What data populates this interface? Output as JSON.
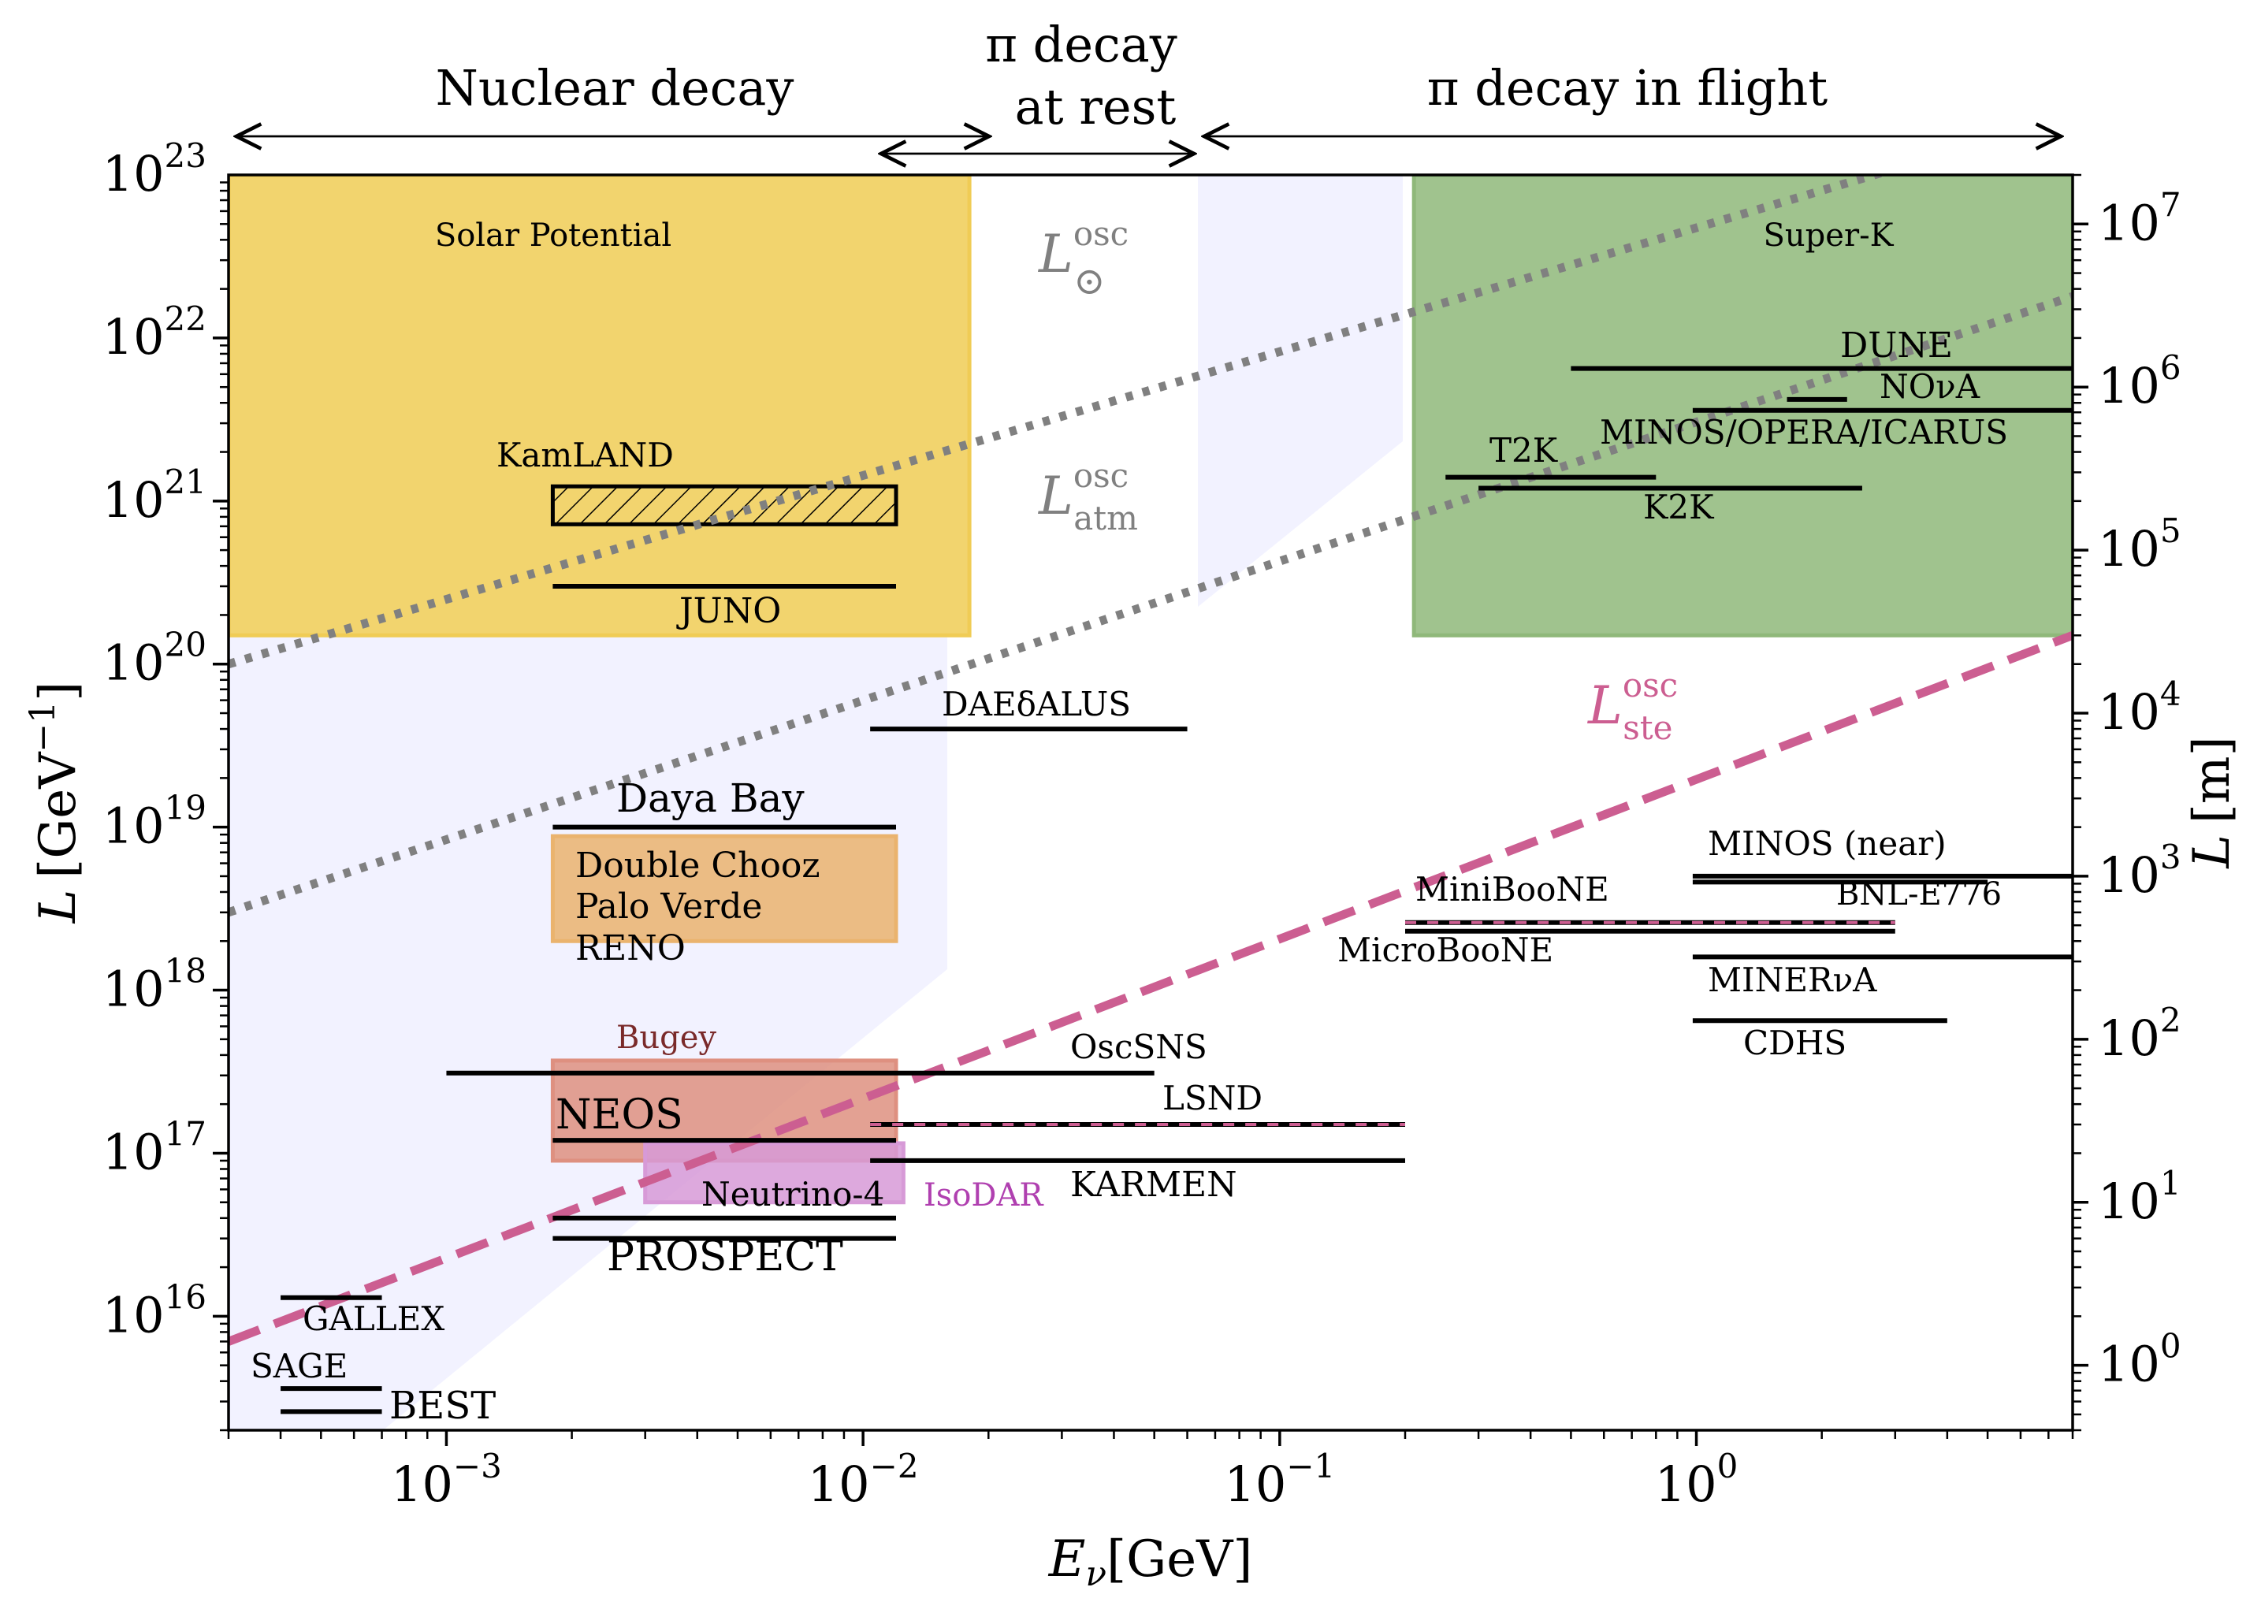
{
  "chart_data": {
    "type": "scatter",
    "title": "",
    "xlabel": {
      "var": "E",
      "sub": "ν",
      "unit": "[GeV]"
    },
    "ylabel": {
      "var": "L",
      "unit": "[GeV",
      "exp": "−1",
      "close": "]"
    },
    "y2label": {
      "var": "L",
      "unit": "[m]"
    },
    "xscale": "log",
    "yscale": "log",
    "xlim": [
      0.0003,
      8.0
    ],
    "ylim": [
      2000000000000000.0,
      1e+23
    ],
    "y2lim_m": [
      0.4,
      20000000.0
    ],
    "xticks": [
      {
        "value": 0.001,
        "base": "10",
        "exp": "−3"
      },
      {
        "value": 0.01,
        "base": "10",
        "exp": "−2"
      },
      {
        "value": 0.1,
        "base": "10",
        "exp": "−1"
      },
      {
        "value": 1.0,
        "base": "10",
        "exp": "0"
      }
    ],
    "yticks": [
      {
        "value": 1e+16,
        "base": "10",
        "exp": "16"
      },
      {
        "value": 1e+17,
        "base": "10",
        "exp": "17"
      },
      {
        "value": 1e+18,
        "base": "10",
        "exp": "18"
      },
      {
        "value": 1e+19,
        "base": "10",
        "exp": "19"
      },
      {
        "value": 1e+20,
        "base": "10",
        "exp": "20"
      },
      {
        "value": 1e+21,
        "base": "10",
        "exp": "21"
      },
      {
        "value": 1e+22,
        "base": "10",
        "exp": "22"
      },
      {
        "value": 1e+23,
        "base": "10",
        "exp": "23"
      }
    ],
    "y2ticks": [
      {
        "value": 1,
        "base": "10",
        "exp": "0"
      },
      {
        "value": 10,
        "base": "10",
        "exp": "1"
      },
      {
        "value": 100,
        "base": "10",
        "exp": "2"
      },
      {
        "value": 1000,
        "base": "10",
        "exp": "3"
      },
      {
        "value": 10000.0,
        "base": "10",
        "exp": "4"
      },
      {
        "value": 100000.0,
        "base": "10",
        "exp": "5"
      },
      {
        "value": 1000000.0,
        "base": "10",
        "exp": "6"
      },
      {
        "value": 10000000.0,
        "base": "10",
        "exp": "7"
      }
    ],
    "regions": [
      {
        "name": "Nuclear decay",
        "x_from": 0.0003,
        "x_to": 0.018
      },
      {
        "name_line1": "π decay",
        "name_line2": "at rest",
        "x_from": 0.0106,
        "x_to": 0.06
      },
      {
        "name": "π decay in flight",
        "x_from": 0.065,
        "x_to": 8.0
      }
    ],
    "osc_lines": [
      {
        "name": "L_sun",
        "label_var": "L",
        "label_sup": "osc",
        "label_sub": "⊙",
        "color": "#808080",
        "style": "dotted",
        "x": [
          0.0003,
          8.0
        ],
        "y": [
          1e+20,
          2.3e+23
        ]
      },
      {
        "name": "L_atm",
        "label_var": "L",
        "label_sup": "osc",
        "label_sub": "atm",
        "color": "#808080",
        "style": "dotted",
        "x": [
          0.0003,
          8.0
        ],
        "y": [
          3e+18,
          1.8e+22
        ]
      },
      {
        "name": "L_ste",
        "label_var": "L",
        "label_sup": "osc",
        "label_sub": "ste",
        "color": "#cc5e91",
        "style": "dashed",
        "x": [
          0.0003,
          8.0
        ],
        "y": [
          7000000000000000.0,
          1.5e+20
        ]
      }
    ],
    "shaded_areas": [
      {
        "name": "Solar Potential",
        "color": "#f0cc55",
        "x": [
          0.0003,
          0.018
        ],
        "y": [
          1.5e+20,
          1e+23
        ]
      },
      {
        "name": "Super-K",
        "color": "#8fb87a",
        "x": [
          0.21,
          8.0
        ],
        "y": [
          1.5e+20,
          1e+23
        ]
      },
      {
        "name": "Double Chooz / Palo Verde / RENO",
        "color": "#eab36e",
        "x": [
          0.0018,
          0.012
        ],
        "y": [
          2e+18,
          8.8e+18
        ]
      },
      {
        "name": "Bugey",
        "color": "#de9080",
        "x": [
          0.0018,
          0.012
        ],
        "y": [
          9e+16,
          3.7e+17
        ]
      },
      {
        "name": "IsoDAR",
        "color": "#d79ad7",
        "x": [
          0.003,
          0.0125
        ],
        "y": [
          5e+16,
          1.15e+17
        ]
      }
    ],
    "experiments": [
      {
        "name": "JUNO",
        "x": [
          0.0018,
          0.012
        ],
        "y": 3e+20,
        "style": "solid"
      },
      {
        "name": "Daya Bay",
        "x": [
          0.0018,
          0.012
        ],
        "y": 1e+19,
        "style": "solid"
      },
      {
        "name": "DAEδALUS",
        "x": [
          0.0104,
          0.06
        ],
        "y": 4e+19,
        "style": "solid"
      },
      {
        "name": "OscSNS",
        "x": [
          0.001,
          0.05
        ],
        "y": 3.1e+17,
        "style": "solid"
      },
      {
        "name": "NEOS",
        "x": [
          0.0018,
          0.012
        ],
        "y": 1.2e+17,
        "style": "solid"
      },
      {
        "name": "LSND",
        "x": [
          0.0104,
          0.2
        ],
        "y": 1.5e+17,
        "style": "dashed-pink"
      },
      {
        "name": "KARMEN",
        "x": [
          0.0104,
          0.2
        ],
        "y": 9e+16,
        "style": "solid"
      },
      {
        "name": "Neutrino-4",
        "x": [
          0.0018,
          0.012
        ],
        "y": 4e+16,
        "style": "solid"
      },
      {
        "name": "PROSPECT",
        "x": [
          0.0018,
          0.012
        ],
        "y": 3e+16,
        "style": "solid"
      },
      {
        "name": "GALLEX",
        "x": [
          0.0004,
          0.0007
        ],
        "y": 1.3e+16,
        "style": "solid"
      },
      {
        "name": "SAGE",
        "x": [
          0.0004,
          0.0007
        ],
        "y": 3600000000000000.0,
        "style": "solid"
      },
      {
        "name": "BEST",
        "x": [
          0.0004,
          0.0007
        ],
        "y": 2600000000000000.0,
        "style": "solid"
      },
      {
        "name": "DUNE",
        "x": [
          0.5,
          8.0
        ],
        "y": 6.5e+21,
        "style": "solid"
      },
      {
        "name": "NOνA",
        "x": [
          1.65,
          2.3
        ],
        "y": 4.2e+21,
        "style": "solid"
      },
      {
        "name": "MINOS/OPERA/ICARUS",
        "x": [
          0.98,
          8.0
        ],
        "y": 3.6e+21,
        "style": "solid"
      },
      {
        "name": "T2K",
        "x": [
          0.25,
          0.8
        ],
        "y": 1.4e+21,
        "style": "solid"
      },
      {
        "name": "K2K",
        "x": [
          0.3,
          2.5
        ],
        "y": 1.2e+21,
        "style": "solid"
      },
      {
        "name": "MINOS (near)",
        "x": [
          0.98,
          8.0
        ],
        "y": 5e+18,
        "style": "solid"
      },
      {
        "name": "BNL-E776",
        "x": [
          0.98,
          5.0
        ],
        "y": 4.6e+18,
        "style": "solid"
      },
      {
        "name": "MiniBooNE",
        "x": [
          0.2,
          3.0
        ],
        "y": 2.6e+18,
        "style": "dashed-pink"
      },
      {
        "name": "MicroBooNE",
        "x": [
          0.2,
          3.0
        ],
        "y": 2.3e+18,
        "style": "solid"
      },
      {
        "name": "MINERνA",
        "x": [
          0.98,
          8.0
        ],
        "y": 1.6e+18,
        "style": "solid"
      },
      {
        "name": "CDHS",
        "x": [
          0.98,
          4.0
        ],
        "y": 6.5e+17,
        "style": "solid"
      }
    ],
    "hatched_boxes": [
      {
        "name": "KamLAND",
        "x": [
          0.0018,
          0.012
        ],
        "y": [
          7.2e+20,
          1.23e+21
        ]
      }
    ]
  }
}
